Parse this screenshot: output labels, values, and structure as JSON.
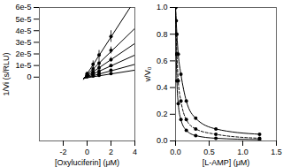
{
  "chart_data": [
    {
      "type": "scatter",
      "x_label": "[Oxyluciferin] (μM)",
      "y_label": "1/Vi (s/RLU)",
      "xlim": [
        -4,
        4
      ],
      "xticks": [
        -2,
        0,
        2,
        4
      ],
      "ylim": [
        -5.5e-05,
        6e-05
      ],
      "yticks": [
        0,
        {
          "value": 1e-05,
          "label": "1e-5"
        },
        {
          "value": 2e-05,
          "label": "2e-5"
        },
        {
          "value": 3e-05,
          "label": "3e-5"
        },
        {
          "value": 4e-05,
          "label": "4e-5"
        },
        {
          "value": 5e-05,
          "label": "5e-5"
        },
        {
          "value": 6e-05,
          "label": "6e-5"
        }
      ],
      "grid": false,
      "marker": "circle",
      "color": "#000000",
      "series": [
        {
          "x": [
            0,
            0.5,
            1,
            2
          ],
          "values": [
            3e-06,
            1.1e-05,
            1.9e-05,
            3.5e-05
          ],
          "errors": [
            1e-06,
            3e-06,
            4e-06,
            5e-06
          ],
          "line_x": [
            -0.3,
            3.6
          ],
          "line_y": [
            -2e-06,
            6e-05
          ]
        },
        {
          "x": [
            0,
            0.5,
            1,
            2
          ],
          "values": [
            2e-06,
            7e-06,
            1.2e-05,
            2.3e-05
          ],
          "errors": [
            1e-06,
            2e-06,
            3e-06,
            3e-06
          ],
          "line_x": [
            -0.3,
            4
          ],
          "line_y": [
            -1e-06,
            4.2e-05
          ]
        },
        {
          "x": [
            0,
            0.5,
            1,
            2
          ],
          "values": [
            1.5e-06,
            4.5e-06,
            8e-06,
            1.5e-05
          ],
          "errors": [
            1e-06,
            1e-06,
            2e-06,
            2e-06
          ],
          "line_x": [
            -0.3,
            4
          ],
          "line_y": [
            -1e-06,
            2.9e-05
          ]
        },
        {
          "x": [
            0,
            0.5,
            1,
            2
          ],
          "values": [
            1e-06,
            3e-06,
            5e-06,
            1e-05
          ],
          "errors": [
            5e-07,
            1e-06,
            1e-06,
            1e-06
          ],
          "line_x": [
            -0.3,
            4
          ],
          "line_y": [
            -1e-06,
            1.9e-05
          ]
        },
        {
          "x": [
            0,
            0.5,
            1,
            2
          ],
          "values": [
            8e-07,
            2e-06,
            3e-06,
            6e-06
          ],
          "errors": [
            5e-07,
            5e-07,
            1e-06,
            1e-06
          ],
          "line_x": [
            -0.3,
            4
          ],
          "line_y": [
            -1e-06,
            1.1e-05
          ]
        },
        {
          "x": [
            0,
            0.5,
            1,
            2
          ],
          "values": [
            5e-07,
            1e-06,
            1.5e-06,
            3e-06
          ],
          "errors": [
            3e-07,
            3e-07,
            5e-07,
            5e-07
          ],
          "line_x": [
            -0.3,
            4
          ],
          "line_y": [
            -1e-06,
            6e-06
          ]
        }
      ]
    },
    {
      "type": "line",
      "x_label": "[L-AMP] (μM)",
      "y_label": "v/V₀",
      "xlim": [
        0,
        1.5
      ],
      "xticks": [
        {
          "value": 0,
          "label": "0.0"
        },
        {
          "value": 0.5,
          "label": "0.5"
        },
        {
          "value": 1,
          "label": "1.0"
        },
        {
          "value": 1.5,
          "label": "1.5"
        }
      ],
      "ylim": [
        0,
        1
      ],
      "yticks": [
        {
          "value": 0,
          "label": "0.0"
        },
        {
          "value": 0.2,
          "label": "0.2"
        },
        {
          "value": 0.4,
          "label": "0.4"
        },
        {
          "value": 0.6,
          "label": "0.6"
        },
        {
          "value": 0.8,
          "label": "0.8"
        },
        {
          "value": 1,
          "label": "1.0"
        }
      ],
      "grid": false,
      "marker": "circle",
      "color": "#000000",
      "series": [
        {
          "x": [
            0,
            0.01,
            0.02,
            0.04,
            0.08,
            0.16,
            0.3,
            0.6,
            1.25
          ],
          "values": [
            1,
            0.9,
            0.8,
            0.65,
            0.5,
            0.3,
            0.17,
            0.09,
            0.05
          ],
          "line_style": "solid"
        },
        {
          "x": [
            0,
            0.01,
            0.02,
            0.04,
            0.08,
            0.16,
            0.3,
            0.6,
            1.25
          ],
          "values": [
            1,
            0.8,
            0.65,
            0.45,
            0.3,
            0.16,
            0.09,
            0.05,
            0.02
          ],
          "line_style": "dashed"
        },
        {
          "x": [
            0,
            0.01,
            0.02,
            0.04,
            0.08,
            0.16,
            0.3,
            0.6,
            1.25
          ],
          "values": [
            1,
            0.65,
            0.45,
            0.28,
            0.16,
            0.08,
            0.04,
            0.02,
            0.01
          ],
          "line_style": "solid"
        }
      ]
    }
  ]
}
